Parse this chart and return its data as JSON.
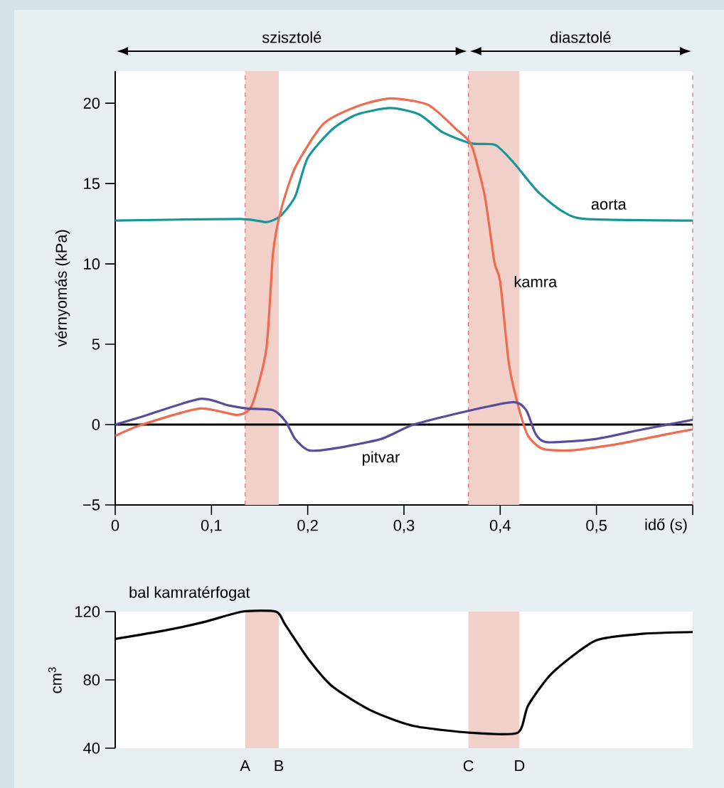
{
  "chart_data": [
    {
      "type": "line",
      "xlabel": "idő (s)",
      "ylabel": "vérnyomás (kPa)",
      "annotations": [
        "szisztolé",
        "diasztolé"
      ],
      "xlim": [
        0,
        0.6
      ],
      "ylim": [
        -5,
        22
      ],
      "xticks": [
        0,
        {
          "value": 0.1,
          "label": "0,1"
        },
        {
          "value": 0.2,
          "label": "0,2"
        },
        {
          "value": 0.3,
          "label": "0,3"
        },
        {
          "value": 0.4,
          "label": "0,4"
        },
        {
          "value": 0.5,
          "label": "0,5"
        },
        {
          "value": 0.6,
          "label": null
        }
      ],
      "yticks": [
        {
          "value": -5,
          "label": "−5"
        },
        0,
        5,
        10,
        15,
        20
      ],
      "series": [
        {
          "name": "aorta",
          "color": "#17969a",
          "x": [
            0,
            0.13,
            0.157,
            0.172,
            0.187,
            0.2,
            0.226,
            0.251,
            0.286,
            0.316,
            0.34,
            0.37,
            0.395,
            0.414,
            0.439,
            0.464,
            0.489,
            0.6
          ],
          "values": [
            12.7,
            12.8,
            12.6,
            13.0,
            14.2,
            16.6,
            18.4,
            19.3,
            19.7,
            19.3,
            18.2,
            17.5,
            17.4,
            16.3,
            14.5,
            13.3,
            12.8,
            12.7
          ]
        },
        {
          "name": "kamra",
          "color": "#f06a4e",
          "x": [
            0,
            0.028,
            0.088,
            0.127,
            0.142,
            0.157,
            0.164,
            0.172,
            0.187,
            0.216,
            0.251,
            0.286,
            0.325,
            0.354,
            0.37,
            0.384,
            0.394,
            0.4,
            0.409,
            0.419,
            0.429,
            0.444,
            0.474,
            0.523,
            0.573,
            0.6
          ],
          "values": [
            -0.7,
            0,
            1.0,
            0.6,
            1.2,
            4.7,
            10.7,
            13.3,
            16.0,
            18.7,
            19.8,
            20.3,
            19.9,
            18.4,
            17.4,
            14.2,
            10.1,
            8.9,
            3.8,
            1.1,
            -0.7,
            -1.5,
            -1.6,
            -1.2,
            -0.6,
            -0.3
          ]
        },
        {
          "name": "pitvar",
          "color": "#574d9c",
          "x": [
            0,
            0.028,
            0.088,
            0.117,
            0.137,
            0.164,
            0.177,
            0.187,
            0.201,
            0.226,
            0.276,
            0.31,
            0.37,
            0.414,
            0.427,
            0.437,
            0.449,
            0.499,
            0.548,
            0.6
          ],
          "values": [
            0,
            0.5,
            1.6,
            1.2,
            1.0,
            0.9,
            0.2,
            -0.9,
            -1.6,
            -1.5,
            -0.9,
            0,
            0.9,
            1.4,
            0.9,
            -0.6,
            -1.1,
            -0.9,
            -0.3,
            0.3
          ]
        }
      ],
      "ref_lines": [
        {
          "axis": "x",
          "value": 0.135,
          "color": "#d9707a",
          "line_style": "dashed"
        },
        {
          "axis": "x",
          "value": 0.367,
          "color": "#d9707a",
          "line_style": "dashed"
        },
        {
          "axis": "x",
          "value": 0.6,
          "color": "#d9707a",
          "line_style": "dashed"
        },
        {
          "axis": "y",
          "value": 0,
          "color": "#000000",
          "line_style": "solid"
        }
      ],
      "bands": [
        {
          "axis": "x",
          "from": 0.135,
          "to": 0.17,
          "color": "#f0d0c9"
        },
        {
          "axis": "x",
          "from": 0.367,
          "to": 0.42,
          "color": "#f0d0c9"
        }
      ]
    },
    {
      "type": "line",
      "title": "bal kamratérfogat",
      "ylabel": "cm$^{3}$",
      "xlim": [
        0,
        0.6
      ],
      "ylim": [
        40,
        120
      ],
      "tick_labels": "y",
      "yticks": [
        40,
        80,
        120
      ],
      "annotations": [
        {
          "text": "A",
          "x": 0.135,
          "y": 40
        },
        {
          "text": "B",
          "x": 0.17,
          "y": 40
        },
        {
          "text": "C",
          "x": 0.367,
          "y": 40
        },
        {
          "text": "D",
          "x": 0.42,
          "y": 40
        }
      ],
      "series": [
        {
          "color": "#000000",
          "x": [
            0,
            0.052,
            0.093,
            0.132,
            0.167,
            0.177,
            0.201,
            0.226,
            0.266,
            0.31,
            0.37,
            0.418,
            0.429,
            0.454,
            0.499,
            0.548,
            0.6
          ],
          "values": [
            104,
            109,
            114,
            120,
            120,
            112,
            92,
            76,
            62,
            53,
            49,
            49,
            65,
            84,
            103,
            107,
            108
          ]
        }
      ],
      "bands": [
        {
          "axis": "x",
          "from": 0.135,
          "to": 0.17,
          "color": "#f0d0c9"
        },
        {
          "axis": "x",
          "from": 0.367,
          "to": 0.42,
          "color": "#f0d0c9"
        }
      ]
    }
  ]
}
